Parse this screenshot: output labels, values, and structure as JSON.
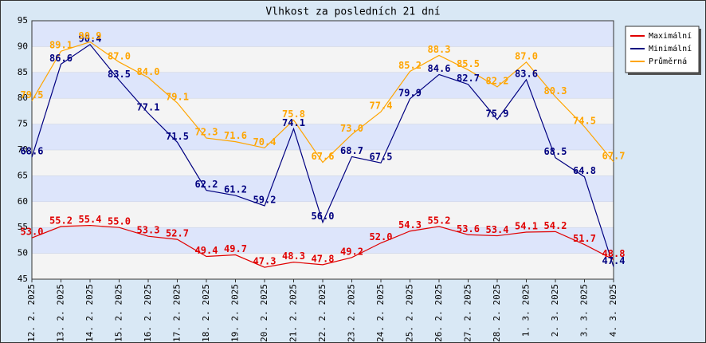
{
  "chart_data": {
    "type": "line",
    "title": "Vlhkost za posledních 21 dní",
    "categories": [
      "12. 2. 2025",
      "13. 2. 2025",
      "14. 2. 2025",
      "15. 2. 2025",
      "16. 2. 2025",
      "17. 2. 2025",
      "18. 2. 2025",
      "19. 2. 2025",
      "20. 2. 2025",
      "21. 2. 2025",
      "22. 2. 2025",
      "23. 2. 2025",
      "24. 2. 2025",
      "25. 2. 2025",
      "26. 2. 2025",
      "27. 2. 2025",
      "28. 2. 2025",
      "1. 3. 2025",
      "2. 3. 2025",
      "3. 3. 2025",
      "4. 3. 2025"
    ],
    "series": [
      {
        "name": "Maximální",
        "color": "#e00000",
        "values": [
          53.0,
          55.2,
          55.4,
          55.0,
          53.3,
          52.7,
          49.4,
          49.7,
          47.3,
          48.3,
          47.8,
          49.2,
          52.0,
          54.3,
          55.2,
          53.6,
          53.4,
          54.1,
          54.2,
          51.7,
          48.8
        ],
        "value_labels": [
          "53.0",
          "55.2",
          "55.4",
          "55.0",
          "53.3",
          "52.7",
          "49.4",
          "49.7",
          "47.3",
          "48.3",
          "47.8",
          "49.2",
          "52.0",
          "54.3",
          "55.2",
          "53.6",
          "53.4",
          "54.1",
          "54.2",
          "51.7",
          "48.8"
        ]
      },
      {
        "name": "Minimální",
        "color": "#000080",
        "values": [
          68.6,
          86.6,
          90.4,
          83.5,
          77.1,
          71.5,
          62.2,
          61.2,
          59.2,
          74.1,
          56.0,
          68.7,
          67.5,
          79.9,
          84.6,
          82.7,
          75.9,
          83.6,
          68.5,
          64.8,
          47.4
        ],
        "value_labels": [
          "68.6",
          "86.6",
          "90.4",
          "83.5",
          "77.1",
          "71.5",
          "62.2",
          "61.2",
          "59.2",
          "74.1",
          "56.0",
          "68.7",
          "67.5",
          "79.9",
          "84.6",
          "82.7",
          "75.9",
          "83.6",
          "68.5",
          "64.8",
          "47.4"
        ]
      },
      {
        "name": "Průměrná",
        "color": "#ffa500",
        "values": [
          79.5,
          89.1,
          90.9,
          87.0,
          84.0,
          79.1,
          72.3,
          71.6,
          70.4,
          75.8,
          67.6,
          73.0,
          77.4,
          85.2,
          88.3,
          85.5,
          82.2,
          87.0,
          80.3,
          74.5,
          67.7
        ],
        "value_labels": [
          "79.5",
          "89.1",
          "90.9",
          "87.0",
          "84.0",
          "79.1",
          "72.3",
          "71.6",
          "70.4",
          "75.8",
          "67.6",
          "73.0",
          "77.4",
          "85.2",
          "88.3",
          "85.5",
          "82.2",
          "87.0",
          "80.3",
          "74.5",
          "67.7"
        ]
      }
    ],
    "ylim": [
      45,
      95
    ],
    "yticks": [
      45,
      50,
      55,
      60,
      65,
      70,
      75,
      80,
      85,
      90,
      95
    ],
    "grid": true,
    "legend": "top-right"
  }
}
